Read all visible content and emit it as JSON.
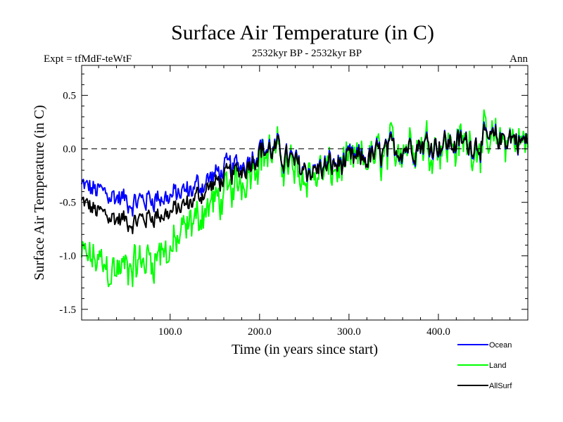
{
  "chart_data": {
    "type": "line",
    "title": "Surface Air Temperature (in C)",
    "subtitle_left": "Expt = tfMdF-teWtF",
    "subtitle_center": "2532kyr BP - 2532kyr BP",
    "subtitle_right": "Ann",
    "xlabel": "Time (in years since start)",
    "ylabel": "Surface Air Temperature (in C)",
    "xlim": [
      1,
      500
    ],
    "ylim": [
      -1.6,
      0.78
    ],
    "x_ticks": [
      100,
      200,
      300,
      400
    ],
    "x_tick_labels": [
      "100.0",
      "200.0",
      "300.0",
      "400.0"
    ],
    "y_ticks": [
      -1.5,
      -1.0,
      -0.5,
      0.0,
      0.5
    ],
    "y_tick_labels": [
      "-1.5",
      "-1.0",
      "-0.5",
      "0.0",
      "0.5"
    ],
    "reference_line": {
      "y": 0.0,
      "style": "dashed"
    },
    "legend_position": "bottom-right",
    "series": [
      {
        "name": "Land",
        "color": "#00ff00",
        "x": [
          1,
          20,
          40,
          60,
          80,
          100,
          120,
          140,
          160,
          180,
          200,
          220,
          240,
          260,
          280,
          300,
          320,
          340,
          360,
          380,
          400,
          420,
          440,
          460,
          480,
          500
        ],
        "values": [
          -1.0,
          -1.05,
          -1.15,
          -1.1,
          -1.0,
          -0.95,
          -0.75,
          -0.55,
          -0.45,
          -0.3,
          -0.05,
          -0.05,
          -0.2,
          -0.25,
          -0.2,
          -0.15,
          -0.1,
          -0.05,
          0.05,
          0.05,
          0.05,
          0.05,
          0.05,
          0.05,
          0.1,
          0.05
        ],
        "noise": [
          0.2,
          0.22,
          0.24,
          0.24,
          0.24,
          0.24,
          0.22,
          0.22,
          0.22,
          0.22,
          0.24,
          0.24,
          0.24,
          0.24,
          0.24,
          0.24,
          0.24,
          0.26,
          0.26,
          0.26,
          0.26,
          0.26,
          0.26,
          0.26,
          0.24,
          0.24
        ]
      },
      {
        "name": "Ocean",
        "color": "#0000ff",
        "x": [
          1,
          20,
          40,
          60,
          80,
          100,
          120,
          140,
          160,
          180,
          200,
          220,
          240,
          260,
          280,
          300,
          320,
          340,
          360,
          380,
          400,
          420,
          440,
          460,
          480,
          500
        ],
        "values": [
          -0.35,
          -0.4,
          -0.45,
          -0.5,
          -0.45,
          -0.45,
          -0.4,
          -0.3,
          -0.2,
          -0.15,
          0.02,
          -0.02,
          -0.15,
          -0.2,
          -0.15,
          -0.12,
          -0.08,
          -0.04,
          0.02,
          0.05,
          0.05,
          0.05,
          0.06,
          0.07,
          0.12,
          0.05
        ],
        "noise": [
          0.12,
          0.12,
          0.12,
          0.12,
          0.12,
          0.12,
          0.12,
          0.12,
          0.12,
          0.12,
          0.14,
          0.14,
          0.14,
          0.14,
          0.14,
          0.14,
          0.14,
          0.14,
          0.14,
          0.14,
          0.14,
          0.14,
          0.14,
          0.14,
          0.14,
          0.14
        ]
      },
      {
        "name": "AllSurf",
        "color": "#000000",
        "x": [
          1,
          20,
          40,
          60,
          80,
          100,
          120,
          140,
          160,
          180,
          200,
          220,
          240,
          260,
          280,
          300,
          320,
          340,
          360,
          380,
          400,
          420,
          440,
          460,
          480,
          500
        ],
        "values": [
          -0.5,
          -0.6,
          -0.65,
          -0.68,
          -0.62,
          -0.6,
          -0.52,
          -0.38,
          -0.28,
          -0.2,
          -0.01,
          -0.02,
          -0.16,
          -0.21,
          -0.16,
          -0.13,
          -0.09,
          -0.04,
          0.02,
          0.05,
          0.05,
          0.05,
          0.06,
          0.07,
          0.12,
          0.05
        ],
        "noise": [
          0.1,
          0.1,
          0.1,
          0.1,
          0.1,
          0.1,
          0.1,
          0.1,
          0.1,
          0.1,
          0.12,
          0.12,
          0.12,
          0.12,
          0.12,
          0.12,
          0.12,
          0.12,
          0.12,
          0.12,
          0.12,
          0.12,
          0.12,
          0.12,
          0.12,
          0.12
        ]
      }
    ]
  }
}
